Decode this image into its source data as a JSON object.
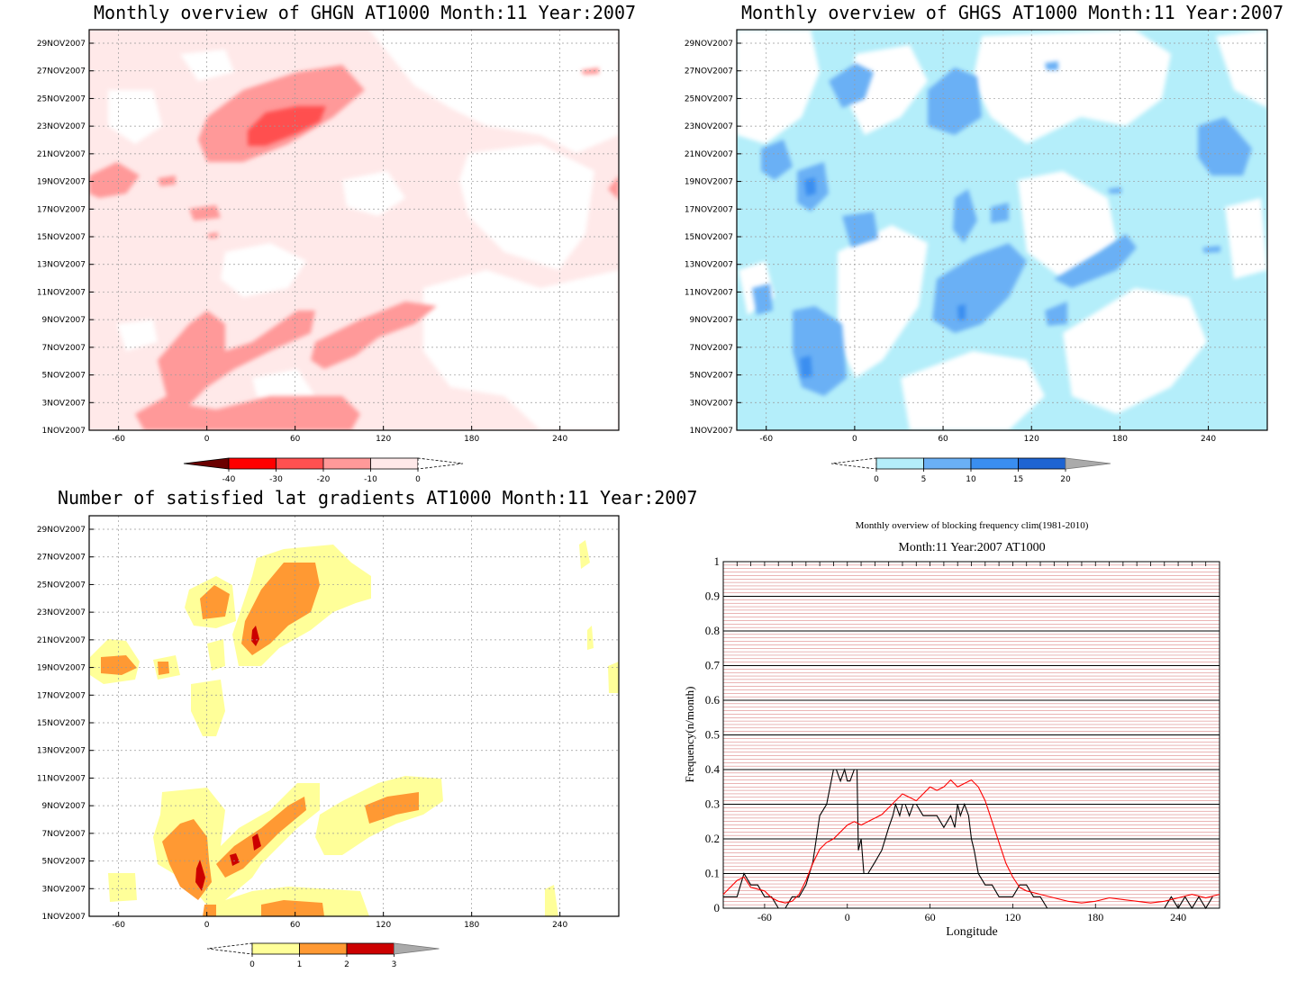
{
  "panels": {
    "ghgn": {
      "title": "Monthly overview of GHGN AT1000 Month:11 Year:2007",
      "colorbar": {
        "labels": [
          "-40",
          "-30",
          "-20",
          "-10",
          "0"
        ],
        "colors": [
          "#6b0000",
          "#ff0000",
          "#ff5050",
          "#ff9999",
          "#ffe9e9"
        ]
      }
    },
    "ghgs": {
      "title": "Monthly overview of GHGS AT1000 Month:11 Year:2007",
      "colorbar": {
        "labels": [
          "0",
          "5",
          "10",
          "15",
          "20"
        ],
        "colors": [
          "#b4eefa",
          "#6ab0f5",
          "#3a8ef0",
          "#1e64d2",
          "#aaaaaa"
        ]
      }
    },
    "grad": {
      "title": "Number of satisfied lat gradients AT1000 Month:11 Year:2007",
      "colorbar": {
        "labels": [
          "0",
          "1",
          "2",
          "3"
        ],
        "colors": [
          "#ffff99",
          "#ff9933",
          "#cc0000",
          "#aaaaaa"
        ]
      }
    },
    "freq": {
      "title": "Monthly overview of blocking frequency clim(1981-2010)",
      "subtitle": "Month:11 Year:2007  AT1000"
    }
  },
  "map_axes": {
    "x_ticks": [
      "-60",
      "0",
      "60",
      "120",
      "180",
      "240"
    ],
    "y_ticks": [
      "1NOV2007",
      "3NOV2007",
      "5NOV2007",
      "7NOV2007",
      "9NOV2007",
      "11NOV2007",
      "13NOV2007",
      "15NOV2007",
      "17NOV2007",
      "19NOV2007",
      "21NOV2007",
      "23NOV2007",
      "25NOV2007",
      "27NOV2007",
      "29NOV2007"
    ]
  },
  "chart_data": {
    "type": "line",
    "title": "Monthly overview of blocking frequency clim(1981-2010)",
    "subtitle": "Month:11 Year:2007  AT1000",
    "xlabel": "Longitude",
    "ylabel": "Frequency(n/month)",
    "xlim": [
      -90,
      270
    ],
    "ylim": [
      0,
      1
    ],
    "x_ticks": [
      "-60",
      "0",
      "60",
      "120",
      "180",
      "240"
    ],
    "y_ticks": [
      "0",
      "0.1",
      "0.2",
      "0.3",
      "0.4",
      "0.5",
      "0.6",
      "0.7",
      "0.8",
      "0.9",
      "1"
    ],
    "series": [
      {
        "color": "#000000",
        "x": [
          -90,
          -80,
          -75,
          -70,
          -65,
          -60,
          -55,
          -50,
          -45,
          -40,
          -35,
          -30,
          -25,
          -20,
          -15,
          -10,
          -8,
          -5,
          -2,
          0,
          2,
          5,
          7,
          8,
          10,
          12,
          15,
          20,
          25,
          30,
          33,
          35,
          38,
          40,
          42,
          45,
          48,
          50,
          55,
          60,
          65,
          70,
          75,
          78,
          80,
          82,
          85,
          88,
          90,
          92,
          95,
          100,
          105,
          110,
          115,
          120,
          125,
          130,
          135,
          140,
          145,
          150,
          155,
          160,
          165,
          170,
          175,
          180,
          185,
          190,
          195,
          200,
          205,
          210,
          215,
          220,
          225,
          230,
          235,
          240,
          245,
          250,
          255,
          260,
          265
        ],
        "y": [
          0.033,
          0.033,
          0.1,
          0.067,
          0.067,
          0.033,
          0.033,
          0.0,
          0.0,
          0.033,
          0.033,
          0.067,
          0.133,
          0.267,
          0.3,
          0.4,
          0.4,
          0.367,
          0.4,
          0.367,
          0.367,
          0.4,
          0.4,
          0.167,
          0.2,
          0.1,
          0.1,
          0.133,
          0.167,
          0.233,
          0.267,
          0.3,
          0.267,
          0.3,
          0.3,
          0.267,
          0.3,
          0.3,
          0.267,
          0.267,
          0.267,
          0.233,
          0.267,
          0.233,
          0.3,
          0.267,
          0.3,
          0.267,
          0.2,
          0.167,
          0.1,
          0.067,
          0.067,
          0.033,
          0.033,
          0.033,
          0.067,
          0.067,
          0.033,
          0.033,
          0.0,
          0.0,
          0.0,
          0.0,
          0.0,
          0.0,
          0.0,
          0.0,
          0.0,
          0.0,
          0.0,
          0.0,
          0.0,
          0.0,
          0.0,
          0.0,
          0.0,
          0.0,
          0.033,
          0.0,
          0.033,
          0.0,
          0.033,
          0.0,
          0.033
        ]
      },
      {
        "color": "#ff0000",
        "x": [
          -90,
          -80,
          -75,
          -70,
          -60,
          -55,
          -50,
          -45,
          -40,
          -35,
          -30,
          -25,
          -20,
          -15,
          -10,
          -5,
          0,
          5,
          10,
          15,
          20,
          25,
          30,
          35,
          40,
          45,
          50,
          55,
          60,
          65,
          70,
          75,
          80,
          85,
          90,
          95,
          100,
          105,
          110,
          115,
          120,
          125,
          130,
          140,
          150,
          160,
          170,
          180,
          190,
          200,
          210,
          220,
          230,
          240,
          250,
          260,
          270
        ],
        "y": [
          0.04,
          0.08,
          0.09,
          0.06,
          0.05,
          0.03,
          0.02,
          0.015,
          0.02,
          0.04,
          0.08,
          0.13,
          0.17,
          0.19,
          0.2,
          0.22,
          0.24,
          0.25,
          0.24,
          0.25,
          0.26,
          0.27,
          0.29,
          0.31,
          0.33,
          0.32,
          0.31,
          0.33,
          0.35,
          0.34,
          0.35,
          0.37,
          0.35,
          0.36,
          0.37,
          0.35,
          0.31,
          0.25,
          0.19,
          0.13,
          0.09,
          0.06,
          0.05,
          0.04,
          0.03,
          0.02,
          0.015,
          0.02,
          0.03,
          0.025,
          0.02,
          0.015,
          0.02,
          0.03,
          0.04,
          0.03,
          0.04
        ]
      }
    ]
  }
}
